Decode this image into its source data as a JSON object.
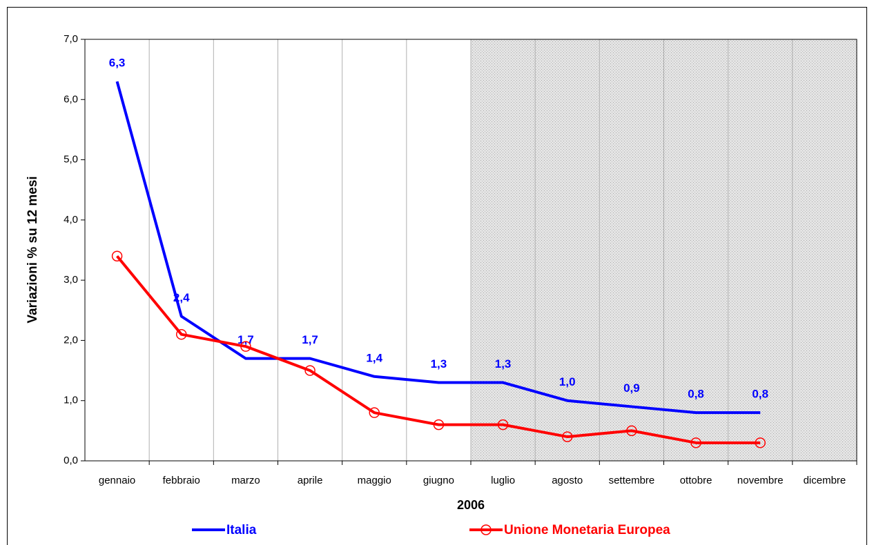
{
  "chart_data": {
    "type": "line",
    "y_label": "Variazioni % su 12 mesi",
    "x_label": "2006",
    "categories": [
      "gennaio",
      "febbraio",
      "marzo",
      "aprile",
      "maggio",
      "giugno",
      "luglio",
      "agosto",
      "settembre",
      "ottobre",
      "novembre",
      "dicembre"
    ],
    "series": [
      {
        "name": "Italia",
        "color": "#0000ff",
        "marker": false,
        "values": [
          6.3,
          2.4,
          1.7,
          1.7,
          1.4,
          1.3,
          1.3,
          1.0,
          0.9,
          0.8,
          0.8,
          null
        ],
        "value_labels": [
          "6,3",
          "2,4",
          "1,7",
          "1,7",
          "1,4",
          "1,3",
          "1,3",
          "1,0",
          "0,9",
          "0,8",
          "0,8",
          null
        ]
      },
      {
        "name": "Unione Monetaria Europea",
        "color": "#ff0000",
        "marker": true,
        "values": [
          3.4,
          2.1,
          1.9,
          1.5,
          0.8,
          0.6,
          0.6,
          0.4,
          0.5,
          0.3,
          0.3,
          null
        ]
      }
    ],
    "ylim": [
      0,
      7
    ],
    "yticks": [
      {
        "value": 0,
        "label": "0,0"
      },
      {
        "value": 1,
        "label": "1,0"
      },
      {
        "value": 2,
        "label": "2,0"
      },
      {
        "value": 3,
        "label": "3,0"
      },
      {
        "value": 4,
        "label": "4,0"
      },
      {
        "value": 5,
        "label": "5,0"
      },
      {
        "value": 6,
        "label": "6,0"
      },
      {
        "value": 7,
        "label": "7,0"
      }
    ],
    "legend": "bottom"
  }
}
